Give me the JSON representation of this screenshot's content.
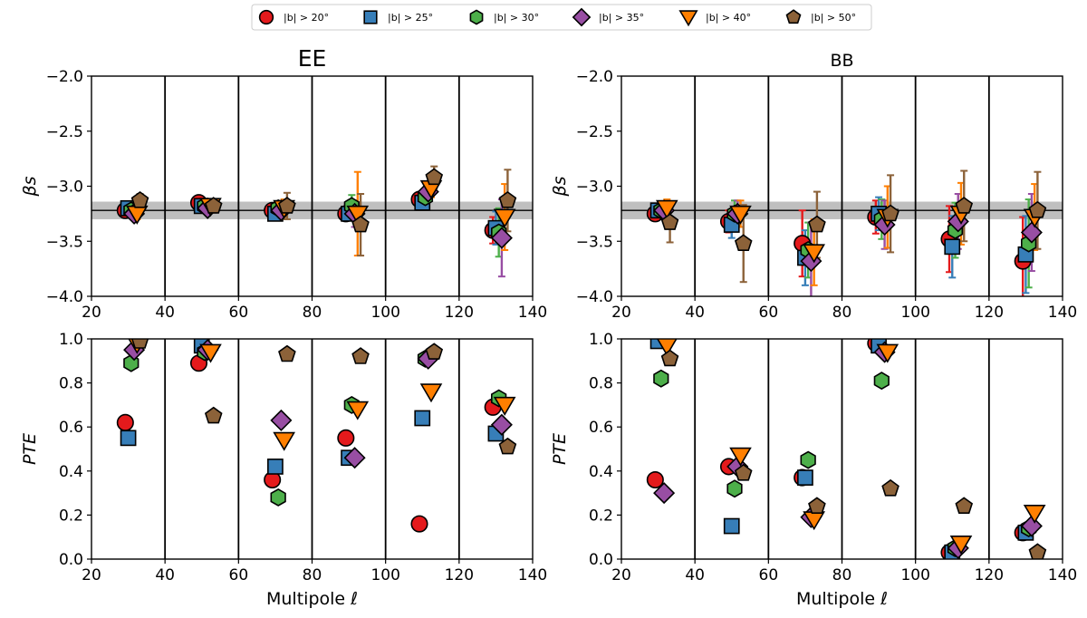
{
  "legend": [
    {
      "label": "|b| > 20°",
      "marker": "circle",
      "color": "#e41a1c"
    },
    {
      "label": "|b| > 25°",
      "marker": "square",
      "color": "#377eb8"
    },
    {
      "label": "|b| > 30°",
      "marker": "hexagon",
      "color": "#4daf4a"
    },
    {
      "label": "|b| > 35°",
      "marker": "diamond",
      "color": "#984ea3"
    },
    {
      "label": "|b| > 40°",
      "marker": "triangle-down",
      "color": "#ff7f00"
    },
    {
      "label": "|b| > 50°",
      "marker": "pentagon",
      "color": "#8c6239"
    }
  ],
  "chart_data": [
    {
      "type": "scatter",
      "panel": "top-left",
      "title": "EE",
      "xlabel": "",
      "ylabel": "βs",
      "xlim": [
        20,
        140
      ],
      "ylim": [
        -4.0,
        -2.0
      ],
      "xticks": [
        "20",
        "40",
        "60",
        "80",
        "100",
        "120",
        "140"
      ],
      "yticks": [
        "−4.0",
        "−3.5",
        "−3.0",
        "−2.5",
        "−2.0"
      ],
      "bin_edges": [
        40,
        60,
        80,
        100,
        120
      ],
      "reference_line": -3.22,
      "reference_band": [
        -3.3,
        -3.14
      ],
      "x_offsets": [
        -0.8,
        0,
        0.8,
        1.6,
        2.4,
        3.2
      ],
      "series": [
        {
          "name": "|b| > 20°",
          "x": [
            30,
            50,
            70,
            90,
            110,
            130
          ],
          "values": [
            -3.22,
            -3.15,
            -3.22,
            -3.25,
            -3.12,
            -3.4
          ],
          "err": [
            0.04,
            0.04,
            0.05,
            0.05,
            0.05,
            0.12
          ]
        },
        {
          "name": "|b| > 25°",
          "x": [
            30,
            50,
            70,
            90,
            110,
            130
          ],
          "values": [
            -3.2,
            -3.18,
            -3.25,
            -3.25,
            -3.15,
            -3.38
          ],
          "err": [
            0.04,
            0.04,
            0.05,
            0.06,
            0.06,
            0.15
          ]
        },
        {
          "name": "|b| > 30°",
          "x": [
            30,
            50,
            70,
            90,
            110,
            130
          ],
          "values": [
            -3.22,
            -3.18,
            -3.2,
            -3.18,
            -3.1,
            -3.42
          ],
          "err": [
            0.05,
            0.05,
            0.06,
            0.1,
            0.07,
            0.22
          ]
        },
        {
          "name": "|b| > 35°",
          "x": [
            30,
            50,
            70,
            90,
            110,
            130
          ],
          "values": [
            -3.25,
            -3.2,
            -3.22,
            -3.25,
            -3.05,
            -3.47
          ],
          "err": [
            0.05,
            0.05,
            0.07,
            0.12,
            0.08,
            0.35
          ]
        },
        {
          "name": "|b| > 40°",
          "x": [
            30,
            50,
            70,
            90,
            110,
            130
          ],
          "values": [
            -3.25,
            -3.18,
            -3.2,
            -3.25,
            -3.02,
            -3.28
          ],
          "err": [
            0.05,
            0.06,
            0.08,
            0.38,
            0.08,
            0.3
          ]
        },
        {
          "name": "|b| > 50°",
          "x": [
            30,
            50,
            70,
            90,
            110,
            130
          ],
          "values": [
            -3.13,
            -3.18,
            -3.18,
            -3.35,
            -2.92,
            -3.13
          ],
          "err": [
            0.06,
            0.06,
            0.12,
            0.28,
            0.1,
            0.28
          ]
        }
      ]
    },
    {
      "type": "scatter",
      "panel": "top-right",
      "title": "BB",
      "xlabel": "",
      "ylabel": "βs",
      "xlim": [
        20,
        140
      ],
      "ylim": [
        -4.0,
        -2.0
      ],
      "xticks": [
        "20",
        "40",
        "60",
        "80",
        "100",
        "120",
        "140"
      ],
      "yticks": [
        "−4.0",
        "−3.5",
        "−3.0",
        "−2.5",
        "−2.0"
      ],
      "bin_edges": [
        40,
        60,
        80,
        100,
        120
      ],
      "reference_line": -3.22,
      "reference_band": [
        -3.3,
        -3.14
      ],
      "x_offsets": [
        -0.8,
        0,
        0.8,
        1.6,
        2.4,
        3.2
      ],
      "series": [
        {
          "name": "|b| > 20°",
          "x": [
            30,
            50,
            70,
            90,
            110,
            130
          ],
          "values": [
            -3.25,
            -3.32,
            -3.52,
            -3.28,
            -3.48,
            -3.68
          ],
          "err": [
            0.06,
            0.1,
            0.3,
            0.15,
            0.3,
            0.4
          ]
        },
        {
          "name": "|b| > 25°",
          "x": [
            30,
            50,
            70,
            90,
            110,
            130
          ],
          "values": [
            -3.22,
            -3.35,
            -3.65,
            -3.25,
            -3.55,
            -3.62
          ],
          "err": [
            0.06,
            0.12,
            0.25,
            0.15,
            0.28,
            0.35
          ]
        },
        {
          "name": "|b| > 30°",
          "x": [
            30,
            50,
            70,
            90,
            110,
            130
          ],
          "values": [
            -3.22,
            -3.25,
            -3.58,
            -3.3,
            -3.4,
            -3.52
          ],
          "err": [
            0.08,
            0.12,
            0.25,
            0.18,
            0.25,
            0.4
          ]
        },
        {
          "name": "|b| > 35°",
          "x": [
            30,
            50,
            70,
            90,
            110,
            130
          ],
          "values": [
            -3.22,
            -3.25,
            -3.68,
            -3.35,
            -3.32,
            -3.42
          ],
          "err": [
            0.08,
            0.12,
            0.35,
            0.22,
            0.25,
            0.35
          ]
        },
        {
          "name": "|b| > 40°",
          "x": [
            30,
            50,
            70,
            90,
            110,
            130
          ],
          "values": [
            -3.2,
            -3.25,
            -3.6,
            -3.28,
            -3.25,
            -3.28
          ],
          "err": [
            0.08,
            0.12,
            0.3,
            0.28,
            0.28,
            0.3
          ]
        },
        {
          "name": "|b| > 50°",
          "x": [
            30,
            50,
            70,
            90,
            110,
            130
          ],
          "values": [
            -3.33,
            -3.52,
            -3.35,
            -3.25,
            -3.18,
            -3.22
          ],
          "err": [
            0.18,
            0.35,
            0.3,
            0.35,
            0.32,
            0.35
          ]
        }
      ]
    },
    {
      "type": "scatter",
      "panel": "bottom-left",
      "title": "",
      "xlabel": "Multipole ℓ",
      "ylabel": "PTE",
      "xlim": [
        20,
        140
      ],
      "ylim": [
        0.0,
        1.0
      ],
      "xticks": [
        "20",
        "40",
        "60",
        "80",
        "100",
        "120",
        "140"
      ],
      "yticks": [
        "0.0",
        "0.2",
        "0.4",
        "0.6",
        "0.8",
        "1.0"
      ],
      "bin_edges": [
        40,
        60,
        80,
        100,
        120
      ],
      "x_offsets": [
        -0.8,
        0,
        0.8,
        1.6,
        2.4,
        3.2
      ],
      "series": [
        {
          "name": "|b| > 20°",
          "x": [
            30,
            50,
            70,
            90,
            110,
            130
          ],
          "values": [
            0.62,
            0.89,
            0.36,
            0.55,
            0.16,
            0.69
          ]
        },
        {
          "name": "|b| > 25°",
          "x": [
            30,
            50,
            70,
            90,
            110,
            130
          ],
          "values": [
            0.55,
            0.97,
            0.42,
            0.46,
            0.64,
            0.57
          ]
        },
        {
          "name": "|b| > 30°",
          "x": [
            30,
            50,
            70,
            90,
            110,
            130
          ],
          "values": [
            0.89,
            0.94,
            0.28,
            0.7,
            0.91,
            0.73
          ]
        },
        {
          "name": "|b| > 35°",
          "x": [
            30,
            50,
            70,
            90,
            110,
            130
          ],
          "values": [
            0.95,
            0.95,
            0.63,
            0.46,
            0.91,
            0.61
          ]
        },
        {
          "name": "|b| > 40°",
          "x": [
            30,
            50,
            70,
            90,
            110,
            130
          ],
          "values": [
            0.98,
            0.94,
            0.54,
            0.68,
            0.76,
            0.7
          ]
        },
        {
          "name": "|b| > 50°",
          "x": [
            30,
            50,
            70,
            90,
            110,
            130
          ],
          "values": [
            0.99,
            0.65,
            0.93,
            0.92,
            0.94,
            0.51
          ]
        }
      ]
    },
    {
      "type": "scatter",
      "panel": "bottom-right",
      "title": "",
      "xlabel": "Multipole ℓ",
      "ylabel": "PTE",
      "xlim": [
        20,
        140
      ],
      "ylim": [
        0.0,
        1.0
      ],
      "xticks": [
        "20",
        "40",
        "60",
        "80",
        "100",
        "120",
        "140"
      ],
      "yticks": [
        "0.0",
        "0.2",
        "0.4",
        "0.6",
        "0.8",
        "1.0"
      ],
      "bin_edges": [
        40,
        60,
        80,
        100,
        120
      ],
      "x_offsets": [
        -0.8,
        0,
        0.8,
        1.6,
        2.4,
        3.2
      ],
      "series": [
        {
          "name": "|b| > 20°",
          "x": [
            30,
            50,
            70,
            90,
            110,
            130
          ],
          "values": [
            0.36,
            0.42,
            0.37,
            0.98,
            0.03,
            0.12
          ]
        },
        {
          "name": "|b| > 25°",
          "x": [
            30,
            50,
            70,
            90,
            110,
            130
          ],
          "values": [
            0.99,
            0.15,
            0.37,
            0.97,
            0.03,
            0.12
          ]
        },
        {
          "name": "|b| > 30°",
          "x": [
            30,
            50,
            70,
            90,
            110,
            130
          ],
          "values": [
            0.82,
            0.32,
            0.45,
            0.81,
            0.05,
            0.14
          ]
        },
        {
          "name": "|b| > 35°",
          "x": [
            30,
            50,
            70,
            90,
            110,
            130
          ],
          "values": [
            0.3,
            0.42,
            0.19,
            0.94,
            0.05,
            0.15
          ]
        },
        {
          "name": "|b| > 40°",
          "x": [
            30,
            50,
            70,
            90,
            110,
            130
          ],
          "values": [
            0.97,
            0.47,
            0.18,
            0.94,
            0.07,
            0.21
          ]
        },
        {
          "name": "|b| > 50°",
          "x": [
            30,
            50,
            70,
            90,
            110,
            130
          ],
          "values": [
            0.91,
            0.39,
            0.24,
            0.32,
            0.24,
            0.03
          ]
        }
      ]
    }
  ]
}
